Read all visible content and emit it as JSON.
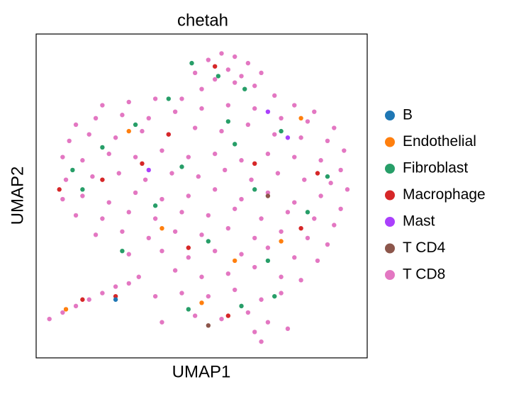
{
  "chart_data": {
    "type": "scatter",
    "title": "chetah",
    "x_label": "UMAP1",
    "y_label": "UMAP2",
    "xlim": [
      0,
      100
    ],
    "ylim": [
      0,
      100
    ],
    "legend": "right",
    "series": [
      {
        "name": "B",
        "color": "#1f77b4",
        "x": [
          24
        ],
        "y": [
          18
        ]
      },
      {
        "name": "Endothelial",
        "color": "#ff7f0e",
        "x": [
          9,
          50,
          38,
          28,
          80,
          60,
          74
        ],
        "y": [
          15,
          17,
          40,
          70,
          74,
          30,
          36
        ]
      },
      {
        "name": "Fibroblast",
        "color": "#279e68",
        "x": [
          47,
          55,
          63,
          30,
          20,
          44,
          60,
          74,
          14,
          36,
          66,
          82,
          26,
          52,
          70,
          46,
          62,
          72,
          11,
          88,
          40,
          58
        ],
        "y": [
          91,
          87,
          83,
          72,
          65,
          59,
          66,
          70,
          52,
          47,
          52,
          45,
          33,
          36,
          30,
          15,
          16,
          19,
          58,
          56,
          80,
          73
        ]
      },
      {
        "name": "Macrophage",
        "color": "#d62728",
        "x": [
          7,
          20,
          32,
          54,
          66,
          46,
          80,
          24,
          14,
          58,
          40,
          85
        ],
        "y": [
          52,
          55,
          60,
          90,
          60,
          34,
          40,
          19,
          18,
          13,
          69,
          57
        ]
      },
      {
        "name": "Mast",
        "color": "#aa40fc",
        "x": [
          70,
          34,
          76
        ],
        "y": [
          76,
          58,
          68
        ]
      },
      {
        "name": "T CD4",
        "color": "#8c564b",
        "x": [
          52,
          70
        ],
        "y": [
          10,
          50
        ]
      },
      {
        "name": "T CD8",
        "color": "#e377c2",
        "x": [
          48,
          52,
          56,
          60,
          64,
          68,
          54,
          60,
          66,
          50,
          58,
          62,
          20,
          28,
          36,
          44,
          72,
          78,
          84,
          12,
          18,
          26,
          34,
          42,
          50,
          58,
          66,
          74,
          82,
          90,
          10,
          16,
          24,
          32,
          40,
          48,
          56,
          64,
          72,
          80,
          88,
          93,
          8,
          14,
          22,
          30,
          38,
          46,
          54,
          62,
          70,
          78,
          86,
          92,
          9,
          17,
          25,
          33,
          41,
          49,
          57,
          65,
          73,
          81,
          89,
          94,
          8,
          14,
          22,
          30,
          38,
          46,
          54,
          62,
          70,
          78,
          86,
          92,
          12,
          20,
          28,
          36,
          44,
          52,
          60,
          68,
          76,
          84,
          90,
          18,
          26,
          34,
          42,
          50,
          58,
          66,
          74,
          82,
          88,
          28,
          38,
          46,
          54,
          62,
          70,
          78,
          85,
          42,
          50,
          58,
          66,
          74,
          80,
          36,
          44,
          52,
          60,
          68,
          74,
          38,
          48,
          56,
          64,
          70,
          76,
          68,
          66,
          4,
          8,
          12,
          16,
          20,
          24,
          28,
          31
        ],
        "y": [
          88,
          92,
          94,
          93,
          91,
          88,
          86,
          85,
          84,
          83,
          89,
          87,
          78,
          79,
          80,
          80,
          81,
          78,
          76,
          72,
          74,
          75,
          74,
          76,
          77,
          78,
          77,
          74,
          73,
          71,
          67,
          69,
          68,
          70,
          69,
          71,
          70,
          72,
          69,
          68,
          67,
          64,
          62,
          61,
          63,
          62,
          64,
          62,
          63,
          61,
          63,
          62,
          61,
          58,
          55,
          56,
          57,
          55,
          57,
          56,
          58,
          55,
          57,
          55,
          54,
          52,
          49,
          50,
          48,
          51,
          49,
          50,
          52,
          49,
          51,
          48,
          50,
          46,
          44,
          43,
          45,
          43,
          45,
          44,
          46,
          43,
          45,
          43,
          41,
          38,
          39,
          37,
          39,
          38,
          40,
          37,
          39,
          37,
          35,
          32,
          33,
          31,
          33,
          32,
          34,
          31,
          30,
          27,
          25,
          26,
          28,
          25,
          24,
          19,
          20,
          19,
          21,
          18,
          20,
          11,
          13,
          12,
          14,
          11,
          9,
          5,
          8,
          12,
          14,
          16,
          18,
          20,
          22,
          23,
          25
        ]
      }
    ]
  }
}
